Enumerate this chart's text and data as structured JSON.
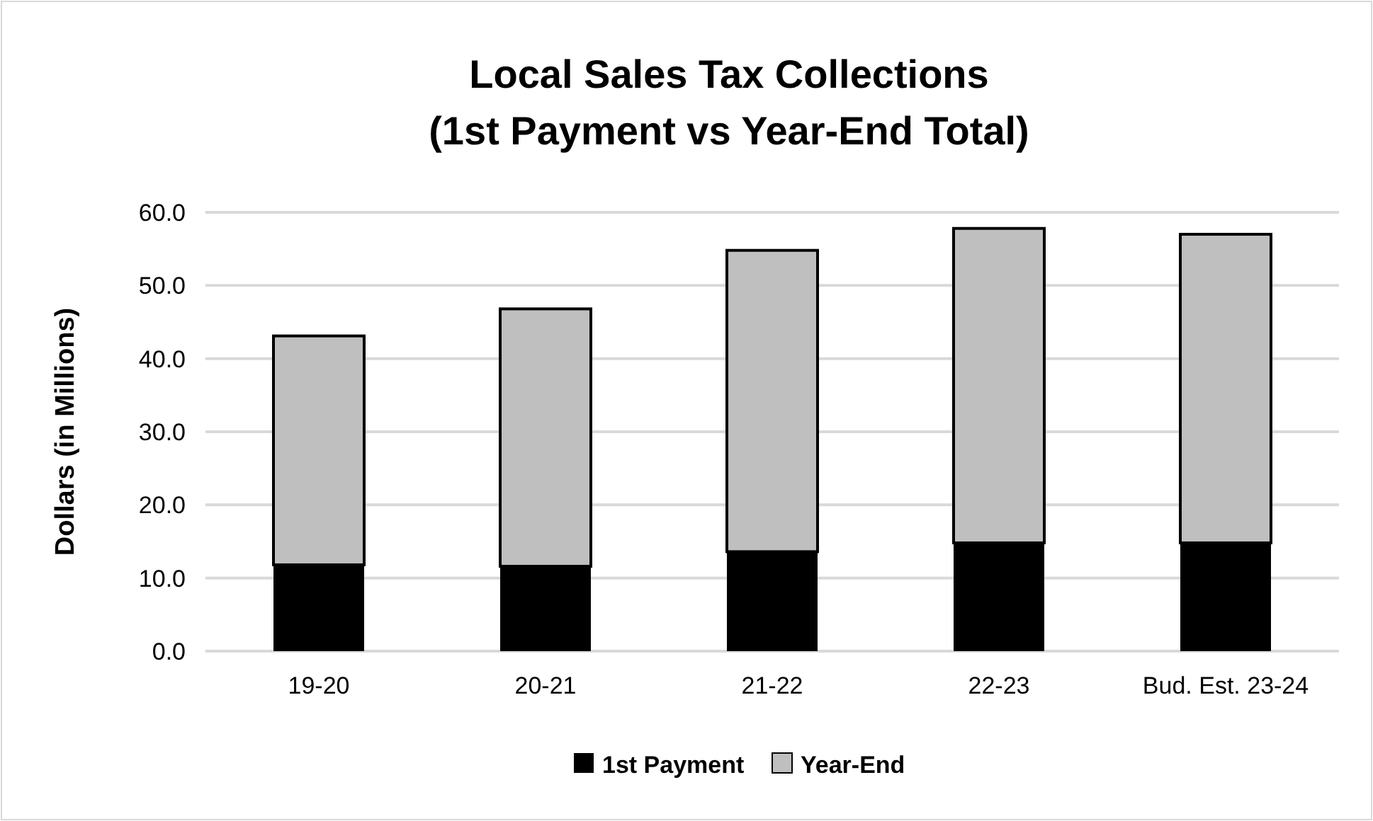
{
  "chart_data": {
    "type": "bar",
    "title": "Local Sales Tax Collections\n(1st Payment vs Year-End Total)",
    "ylabel": "Dollars (in Millions)",
    "categories": [
      "19-20",
      "20-21",
      "21-22",
      "22-23",
      "Bud. Est. 23-24"
    ],
    "stacked": true,
    "series": [
      {
        "name": "1st Payment",
        "color": "#000000",
        "values": [
          11.8,
          11.6,
          13.6,
          14.8,
          14.8
        ]
      },
      {
        "name": "Year-End",
        "color": "#bfbfbf",
        "values": [
          31.3,
          35.2,
          41.2,
          43.0,
          42.2
        ]
      }
    ],
    "ylim": [
      0,
      60
    ],
    "yticks": [
      {
        "value": 0,
        "label": "0.0"
      },
      {
        "value": 10,
        "label": "10.0"
      },
      {
        "value": 20,
        "label": "20.0"
      },
      {
        "value": 30,
        "label": "30.0"
      },
      {
        "value": 40,
        "label": "40.0"
      },
      {
        "value": 50,
        "label": "50.0"
      },
      {
        "value": 60,
        "label": "60.0"
      }
    ],
    "grid": "y",
    "legend": "bottom"
  }
}
